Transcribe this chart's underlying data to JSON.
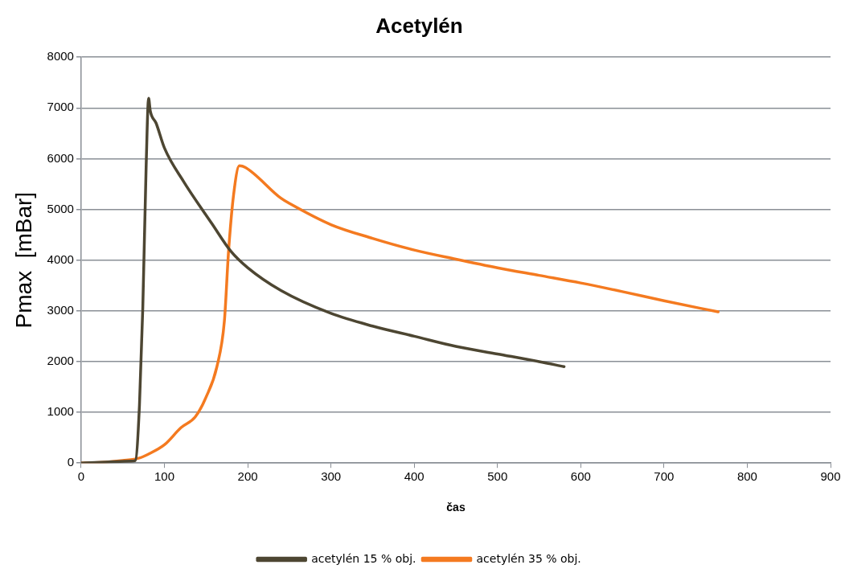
{
  "chart_data": {
    "type": "line",
    "title": "Acetylén",
    "xlabel": "čas",
    "ylabel": "Pmax  [mBar]",
    "xlim": [
      0,
      900
    ],
    "xticks": [
      0,
      100,
      200,
      300,
      400,
      500,
      600,
      700,
      800,
      900
    ],
    "ylim": [
      0,
      8000
    ],
    "yticks": [
      0,
      1000,
      2000,
      3000,
      4000,
      5000,
      6000,
      7000,
      8000
    ],
    "grid": "y",
    "legend": "bottom",
    "marker": "none",
    "line_style": "solid",
    "series": [
      {
        "name": "acetylén 15 % obj.",
        "color": "#4d4632",
        "x": [
          0,
          30,
          60,
          65,
          70,
          74,
          78,
          81,
          83,
          90,
          100,
          123,
          157,
          180,
          200,
          240,
          300,
          350,
          400,
          450,
          500,
          550,
          580
        ],
        "values": [
          0,
          20,
          40,
          50,
          1140,
          3060,
          5830,
          7190,
          6940,
          6700,
          6210,
          5550,
          4720,
          4170,
          3850,
          3400,
          2950,
          2700,
          2500,
          2300,
          2150,
          2000,
          1900
        ]
      },
      {
        "name": "acetylén 35 % obj.",
        "color": "#f47a20",
        "x": [
          0,
          30,
          50,
          70,
          80,
          100,
          120,
          137,
          150,
          163,
          172,
          177,
          183,
          190,
          197,
          240,
          250,
          300,
          350,
          400,
          450,
          500,
          550,
          600,
          650,
          700,
          765
        ],
        "values": [
          0,
          20,
          50,
          100,
          170,
          360,
          700,
          910,
          1300,
          1900,
          2800,
          4170,
          5280,
          5860,
          5830,
          5220,
          5120,
          4700,
          4430,
          4200,
          4020,
          3850,
          3700,
          3550,
          3380,
          3200,
          2980
        ]
      }
    ]
  }
}
